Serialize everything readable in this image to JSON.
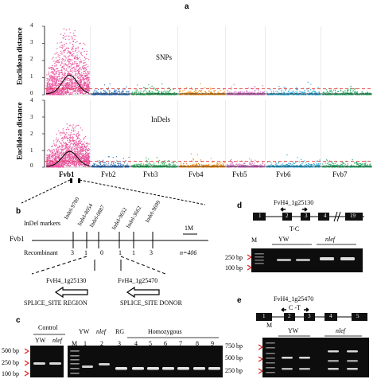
{
  "panels": {
    "a": "a",
    "b": "b",
    "c": "c",
    "d": "d",
    "e": "e"
  },
  "panel_a": {
    "ylabel": "Euclidean distance",
    "top_label": "SNPs",
    "bottom_label": "InDels",
    "yticks": [
      "0",
      "1",
      "2",
      "3",
      "4"
    ],
    "chromosomes": [
      "Fvb1",
      "Fvb2",
      "Fvb3",
      "Fvb4",
      "Fvb5",
      "Fvb6",
      "Fvb7"
    ],
    "colors": {
      "Fvb1": "#e85aa0",
      "Fvb2": "#3a78c0",
      "Fvb3": "#2fb060",
      "Fvb4": "#f09020",
      "Fvb5": "#d070c0",
      "Fvb6": "#2aa8d8",
      "Fvb7": "#30b070",
      "threshold": "#e03030",
      "fit": "#000000"
    },
    "chart_data": {
      "type": "scatter",
      "ylabel": "Euclidean distance",
      "ylim": [
        0,
        4
      ],
      "categories": [
        "Fvb1",
        "Fvb2",
        "Fvb3",
        "Fvb4",
        "Fvb5",
        "Fvb6",
        "Fvb7"
      ],
      "series": [
        {
          "name": "SNPs",
          "threshold": 0.35,
          "peak_region": "Fvb1",
          "max_y": 3.9
        },
        {
          "name": "InDels",
          "threshold": 0.35,
          "peak_region": "Fvb1",
          "max_y": 2.6
        }
      ]
    }
  },
  "panel_b": {
    "heading": "InDel markers",
    "markers": [
      "Indel-9780",
      "Indel-8054",
      "Indel-0887",
      "Indel-9652",
      "Indel-3662",
      "Indel-9699"
    ],
    "scale": "1M",
    "chrom": "Fvb1",
    "recombinant_label": "Recombinant",
    "recombinants": [
      "3",
      "1",
      "0",
      "1",
      "1",
      "3"
    ],
    "n": "n=406",
    "gene1": "FvH4_1g25130",
    "gene2": "FvH4_1g25470",
    "site1": "SPLICE_SITE REGION",
    "site2": "SPLICE_SITE DONOR"
  },
  "panel_c": {
    "control": "Control",
    "yw": "YW",
    "nlef": "nlef",
    "marker": "M",
    "rg": "RG",
    "homozygous": "Homozygous",
    "sizes": [
      "500 bp",
      "250 bp",
      "100 bp"
    ],
    "lanes": [
      "1",
      "2",
      "3",
      "4",
      "5",
      "6",
      "7",
      "8",
      "9"
    ]
  },
  "panel_d": {
    "gene": "FvH4_1g25130",
    "mutation": "T-C",
    "exons": [
      "1",
      "2",
      "3",
      "4",
      "19"
    ],
    "marker": "M",
    "yw": "YW",
    "nlef": "nlef",
    "sizes": [
      "250 bp",
      "100 bp"
    ]
  },
  "panel_e": {
    "gene": "FvH4_1g25470",
    "mutation": "C -T",
    "exons": [
      "1",
      "2",
      "3",
      "4",
      "5"
    ],
    "marker": "M",
    "yw": "YW",
    "nlef": "nlef",
    "sizes": [
      "750 bp",
      "500 bp",
      "250 bp"
    ]
  }
}
